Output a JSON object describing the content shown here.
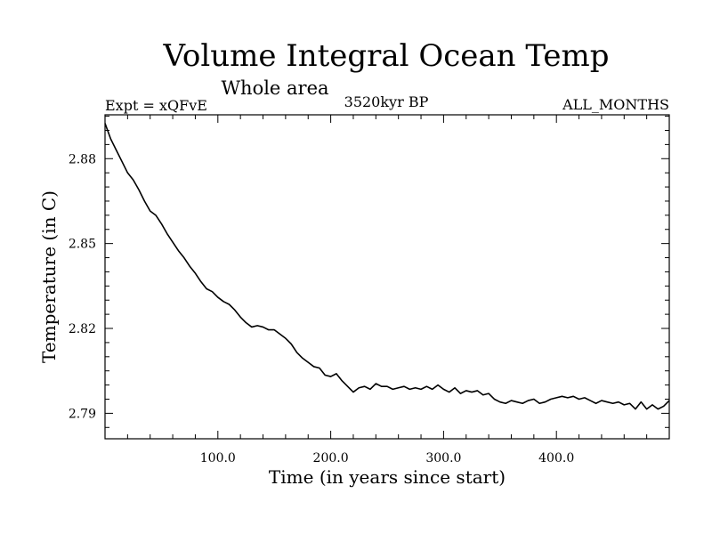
{
  "chart_data": {
    "type": "line",
    "title": "Volume Integral Ocean Temp",
    "subtitle": "Whole area",
    "annotations": {
      "left": "Expt = xQFvE",
      "center": "3520kyr BP",
      "right": "ALL_MONTHS"
    },
    "xlabel": "Time (in years since start)",
    "ylabel": "Temperature (in C)",
    "xlim": [
      0,
      500
    ],
    "ylim": [
      2.781,
      2.8955
    ],
    "xticks": [
      100,
      200,
      300,
      400
    ],
    "xtick_labels": [
      "100.0",
      "200.0",
      "300.0",
      "400.0"
    ],
    "xminor_step": 20,
    "yticks": [
      2.79,
      2.82,
      2.85,
      2.88
    ],
    "ytick_labels": [
      "2.79",
      "2.82",
      "2.85",
      "2.88"
    ],
    "yminor_step": 0.005,
    "grid": false,
    "series": [
      {
        "name": "Volume integral ocean temperature",
        "color": "#000000",
        "x": [
          0,
          5,
          10,
          15,
          20,
          25,
          30,
          35,
          40,
          45,
          50,
          55,
          60,
          65,
          70,
          75,
          80,
          85,
          90,
          95,
          100,
          105,
          110,
          115,
          120,
          125,
          130,
          135,
          140,
          145,
          150,
          155,
          160,
          165,
          170,
          175,
          180,
          185,
          190,
          195,
          200,
          205,
          210,
          215,
          220,
          225,
          230,
          235,
          240,
          245,
          250,
          255,
          260,
          265,
          270,
          275,
          280,
          285,
          290,
          295,
          300,
          305,
          310,
          315,
          320,
          325,
          330,
          335,
          340,
          345,
          350,
          355,
          360,
          365,
          370,
          375,
          380,
          385,
          390,
          395,
          400,
          405,
          410,
          415,
          420,
          425,
          430,
          435,
          440,
          445,
          450,
          455,
          460,
          465,
          470,
          475,
          480,
          485,
          490,
          495,
          500
        ],
        "y": [
          2.8925,
          2.887,
          2.883,
          2.879,
          2.875,
          2.8725,
          2.869,
          2.865,
          2.8615,
          2.86,
          2.857,
          2.8535,
          2.8505,
          2.8475,
          2.845,
          2.842,
          2.8395,
          2.8365,
          2.834,
          2.833,
          2.831,
          2.8295,
          2.8285,
          2.8265,
          2.824,
          2.822,
          2.8205,
          2.821,
          2.8205,
          2.8195,
          2.8195,
          2.818,
          2.8165,
          2.8145,
          2.8115,
          2.8095,
          2.808,
          2.8065,
          2.806,
          2.8035,
          2.803,
          2.804,
          2.8015,
          2.7995,
          2.7975,
          2.799,
          2.7995,
          2.7985,
          2.8005,
          2.7995,
          2.7995,
          2.7985,
          2.799,
          2.7995,
          2.7985,
          2.799,
          2.7985,
          2.7995,
          2.7985,
          2.8,
          2.7985,
          2.7975,
          2.799,
          2.797,
          2.798,
          2.7975,
          2.798,
          2.7965,
          2.797,
          2.795,
          2.794,
          2.7935,
          2.7945,
          2.794,
          2.7935,
          2.7945,
          2.795,
          2.7935,
          2.794,
          2.795,
          2.7955,
          2.796,
          2.7955,
          2.796,
          2.795,
          2.7955,
          2.7945,
          2.7935,
          2.7945,
          2.794,
          2.7935,
          2.794,
          2.793,
          2.7935,
          2.7915,
          2.794,
          2.7915,
          2.793,
          2.7915,
          2.7925,
          2.7945
        ]
      }
    ]
  }
}
